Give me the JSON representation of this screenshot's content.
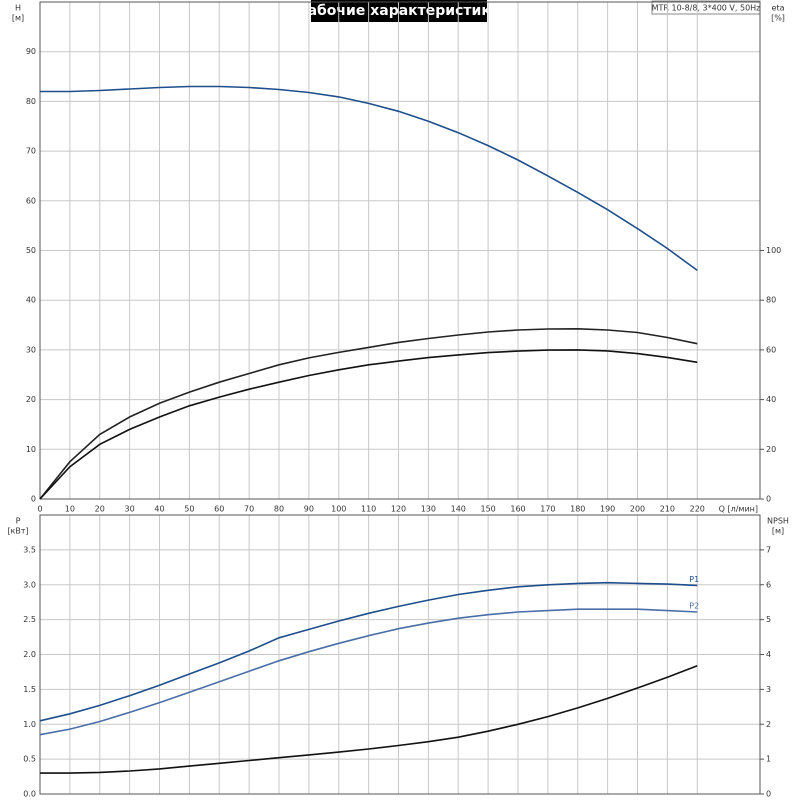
{
  "title": "Рабочие характеристики",
  "model": "MTR 10-8/8, 3*400 V, 50Hz",
  "chart_data": [
    {
      "type": "line",
      "ylabel": "H",
      "yunit": "[м]",
      "y2label": "eta",
      "y2unit": "[%]",
      "xlabel": "Q [л/мин]",
      "x": [
        0,
        10,
        20,
        30,
        40,
        50,
        60,
        70,
        80,
        90,
        100,
        110,
        120,
        130,
        140,
        150,
        160,
        170,
        180,
        190,
        200,
        210,
        220
      ],
      "xlim": [
        0,
        241
      ],
      "xticks": [
        0,
        10,
        20,
        30,
        40,
        50,
        60,
        70,
        80,
        90,
        100,
        110,
        120,
        130,
        140,
        150,
        160,
        170,
        180,
        190,
        200,
        210,
        220
      ],
      "ylim": [
        0,
        100
      ],
      "yticks": [
        0,
        10,
        20,
        30,
        40,
        50,
        60,
        70,
        80,
        90
      ],
      "y2lim": [
        0,
        200
      ],
      "y2ticks": [
        0,
        20,
        40,
        60,
        80,
        100
      ],
      "grid": true,
      "series": [
        {
          "color": "#1f4e8c",
          "values": [
            82,
            82,
            82.2,
            82.5,
            82.8,
            83,
            83,
            82.8,
            82.4,
            81.8,
            80.9,
            79.6,
            78,
            76,
            73.7,
            71.1,
            68.2,
            65,
            61.7,
            58.2,
            54.4,
            50.4,
            46
          ]
        },
        {
          "color": "#222222",
          "axis": "y2",
          "values": [
            0,
            15,
            26,
            33,
            38.5,
            43,
            47,
            50.5,
            54,
            56.8,
            59,
            61,
            63,
            64.6,
            66,
            67.2,
            68,
            68.4,
            68.5,
            68,
            67,
            65,
            62.5
          ]
        },
        {
          "color": "#111111",
          "axis": "y2",
          "values": [
            0,
            13,
            22,
            28,
            33,
            37.5,
            41,
            44.2,
            47,
            49.7,
            52,
            54,
            55.5,
            56.9,
            58,
            58.9,
            59.5,
            59.9,
            60,
            59.6,
            58.5,
            57,
            55
          ]
        }
      ]
    },
    {
      "type": "line",
      "ylabel": "P",
      "yunit": "[кВт]",
      "y2label": "NPSH",
      "y2unit": "[м]",
      "x": [
        0,
        10,
        20,
        30,
        40,
        50,
        60,
        70,
        80,
        90,
        100,
        110,
        120,
        130,
        140,
        150,
        160,
        170,
        180,
        190,
        200,
        210,
        220
      ],
      "xlim": [
        0,
        241
      ],
      "xticks": [
        0,
        10,
        20,
        30,
        40,
        50,
        60,
        70,
        80,
        90,
        100,
        110,
        120,
        130,
        140,
        150,
        160,
        170,
        180,
        190,
        200,
        210,
        220
      ],
      "ylim": [
        0,
        4
      ],
      "yticks": [
        {
          "value": 0,
          "label": "0.0"
        },
        0.5,
        {
          "value": 1,
          "label": "1.0"
        },
        1.5,
        {
          "value": 2,
          "label": "2.0"
        },
        2.5,
        {
          "value": 3,
          "label": "3.0"
        },
        3.5
      ],
      "y2lim": [
        0,
        8
      ],
      "y2ticks": [
        0,
        1,
        2,
        3,
        4,
        5,
        6,
        7
      ],
      "grid": true,
      "series": [
        {
          "name": "P1",
          "color": "#1f4e8c",
          "values": [
            1.05,
            1.15,
            1.27,
            1.41,
            1.56,
            1.72,
            1.88,
            2.05,
            2.24,
            2.36,
            2.48,
            2.59,
            2.69,
            2.78,
            2.86,
            2.92,
            2.97,
            3.0,
            3.02,
            3.03,
            3.02,
            3.01,
            2.99
          ]
        },
        {
          "name": "P2",
          "color": "#4a6ea8",
          "values": [
            0.85,
            0.93,
            1.04,
            1.17,
            1.31,
            1.46,
            1.61,
            1.76,
            1.91,
            2.04,
            2.16,
            2.27,
            2.37,
            2.45,
            2.52,
            2.57,
            2.61,
            2.63,
            2.65,
            2.65,
            2.65,
            2.63,
            2.61
          ]
        },
        {
          "color": "#111111",
          "axis": "y2",
          "values": [
            0.6,
            0.6,
            0.62,
            0.66,
            0.72,
            0.8,
            0.88,
            0.96,
            1.04,
            1.12,
            1.2,
            1.29,
            1.39,
            1.5,
            1.63,
            1.8,
            2.0,
            2.22,
            2.47,
            2.74,
            3.04,
            3.35,
            3.68
          ]
        }
      ]
    }
  ]
}
